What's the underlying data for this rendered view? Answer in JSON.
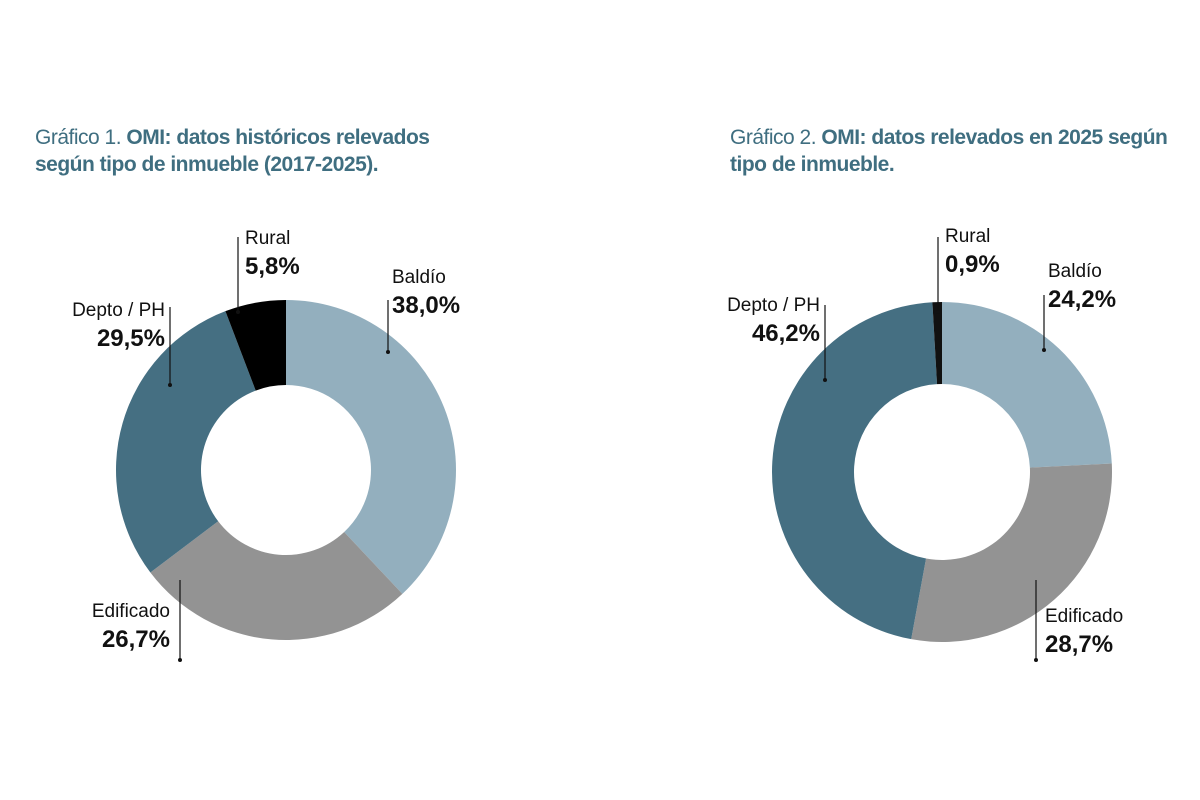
{
  "chart_data": [
    {
      "type": "donut",
      "title_label": "Gráfico 1.",
      "title": "OMI: datos históricos relevados según tipo de inmueble (2017-2025).",
      "categories": [
        "Baldío",
        "Edificado",
        "Depto / PH",
        "Rural"
      ],
      "values": [
        38.0,
        26.7,
        29.5,
        5.8
      ],
      "value_labels": [
        "38,0%",
        "26,7%",
        "29,5%",
        "5,8%"
      ],
      "colors": [
        "#93afbe",
        "#939393",
        "#456f82",
        "#000000"
      ]
    },
    {
      "type": "donut",
      "title_label": "Gráfico 2.",
      "title": "OMI: datos relevados en 2025 según tipo de inmueble.",
      "categories": [
        "Baldío",
        "Edificado",
        "Depto / PH",
        "Rural"
      ],
      "values": [
        24.2,
        28.7,
        46.2,
        0.9
      ],
      "value_labels": [
        "24,2%",
        "28,7%",
        "46,2%",
        "0,9%"
      ],
      "colors": [
        "#93afbe",
        "#939393",
        "#456f82",
        "#111111"
      ]
    }
  ]
}
